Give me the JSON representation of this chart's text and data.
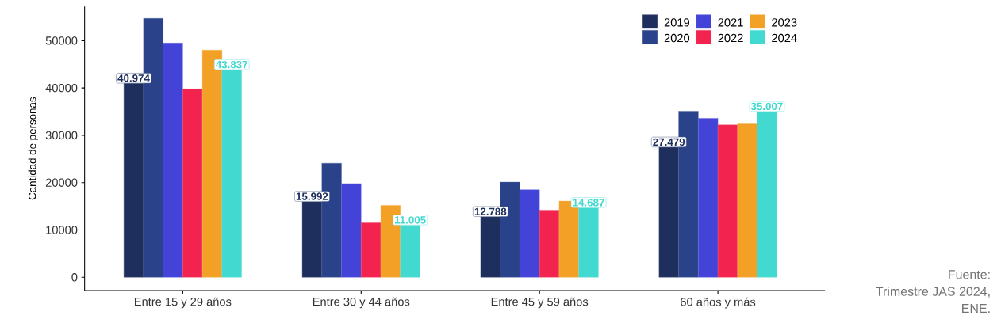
{
  "chart_data": {
    "type": "bar",
    "ylabel": "Cantidad de personas",
    "categories": [
      "Entre 15 y 29 años",
      "Entre 30 y 44 años",
      "Entre 45 y 59 años",
      "60 años y más"
    ],
    "series": [
      {
        "name": "2019",
        "color": "#1e2f5e",
        "values": [
          40974,
          15992,
          12788,
          27479
        ],
        "value_labels": [
          "40.974",
          "15.992",
          "12.788",
          "27.479"
        ]
      },
      {
        "name": "2020",
        "color": "#29428a",
        "values": [
          54700,
          24100,
          20100,
          35100
        ]
      },
      {
        "name": "2021",
        "color": "#4343d8",
        "values": [
          49500,
          19800,
          18500,
          33600
        ]
      },
      {
        "name": "2022",
        "color": "#f2244f",
        "values": [
          39800,
          11500,
          14200,
          32200
        ]
      },
      {
        "name": "2023",
        "color": "#f2a126",
        "values": [
          48000,
          15200,
          16100,
          32400
        ]
      },
      {
        "name": "2024",
        "color": "#41d9d0",
        "values": [
          43837,
          11005,
          14687,
          35007
        ],
        "value_labels": [
          "43.837",
          "11.005",
          "14.687",
          "35.007"
        ]
      }
    ],
    "ylim": [
      -2800,
      57200
    ],
    "yticks": [
      0,
      10000,
      20000,
      30000,
      40000,
      50000
    ],
    "legend": "top right",
    "annotations": [
      "Fuente:",
      "Trimestre JAS 2024,",
      "ENE."
    ]
  }
}
